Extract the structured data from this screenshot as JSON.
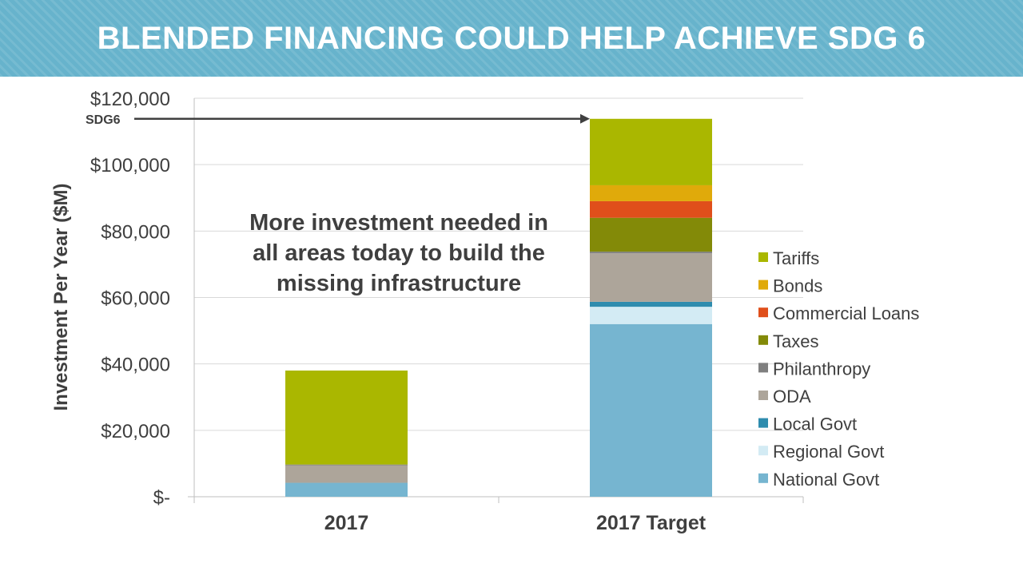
{
  "header": {
    "title": "BLENDED FINANCING COULD HELP ACHIEVE SDG 6"
  },
  "colors": {
    "banner": "#67b3cc",
    "axis_text": "#3f3f3f",
    "gridline": "#d9d9d9"
  },
  "chart_data": {
    "type": "bar",
    "stacked": true,
    "title": "",
    "xlabel": "",
    "ylabel": "Investment Per Year ($M)",
    "categories": [
      "2017",
      "2017 Target"
    ],
    "ylim": [
      0,
      120000
    ],
    "yticks": [
      0,
      20000,
      40000,
      60000,
      80000,
      100000,
      120000
    ],
    "ytick_labels": [
      "$-",
      "$20,000",
      "$40,000",
      "$60,000",
      "$80,000",
      "$100,000",
      "$120,000"
    ],
    "grid": true,
    "legend_position": "right",
    "series": [
      {
        "name": "National Govt",
        "color": "#76b5d0",
        "values": [
          4200,
          52000
        ]
      },
      {
        "name": "Regional Govt",
        "color": "#d3ebf4",
        "values": [
          0,
          5200
        ]
      },
      {
        "name": "Local Govt",
        "color": "#2e8cae",
        "values": [
          0,
          1500
        ]
      },
      {
        "name": "ODA",
        "color": "#ada59a",
        "values": [
          5300,
          14600
        ]
      },
      {
        "name": "Philanthropy",
        "color": "#7f7f7f",
        "values": [
          200,
          500
        ]
      },
      {
        "name": "Taxes",
        "color": "#838a08",
        "values": [
          0,
          10200
        ]
      },
      {
        "name": "Commercial Loans",
        "color": "#e04f1b",
        "values": [
          0,
          5000
        ]
      },
      {
        "name": "Bonds",
        "color": "#e0aa0a",
        "values": [
          0,
          4800
        ]
      },
      {
        "name": "Tariffs",
        "color": "#aab700",
        "values": [
          28300,
          20000
        ]
      }
    ],
    "annotations": [
      {
        "text": "SDG6",
        "type": "arrow",
        "y": 113800,
        "target_category": "2017 Target"
      },
      {
        "text": "More investment needed in all areas today to build the missing infrastructure",
        "type": "callout"
      }
    ]
  }
}
